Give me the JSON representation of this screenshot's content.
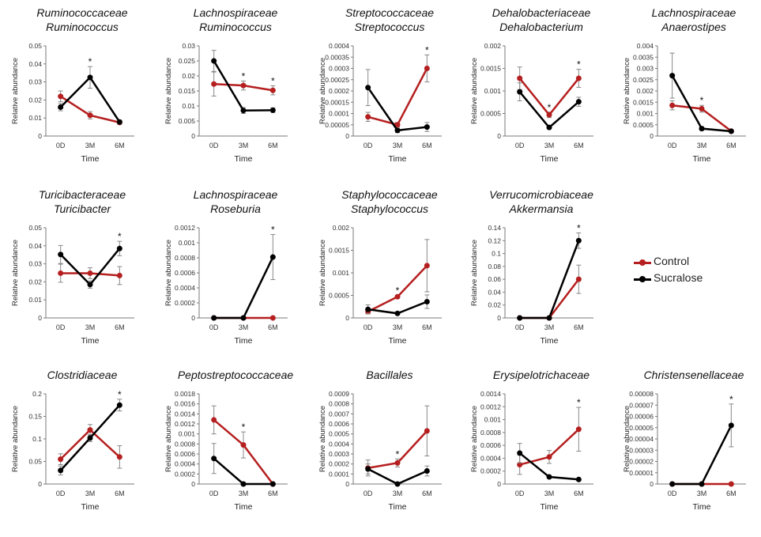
{
  "colors": {
    "control": "#b51f1f",
    "sucralose": "#000000"
  },
  "legend": {
    "control": "Control",
    "sucralose": "Sucralose"
  },
  "chart_data": [
    {
      "type": "line",
      "title": [
        "Ruminococcaceae",
        "Ruminococcus"
      ],
      "xlabel": "Time",
      "ylabel": "Relative abundance",
      "categories": [
        "0D",
        "3M",
        "6M"
      ],
      "ylim": [
        0,
        0.05
      ],
      "yticks": [
        "0",
        "0.01",
        "0.02",
        "0.03",
        "0.04",
        "0.05"
      ],
      "series": [
        {
          "name": "Control",
          "values": [
            0.022,
            0.0115,
            0.0075
          ],
          "err": [
            0.003,
            0.002,
            0.001
          ]
        },
        {
          "name": "Sucralose",
          "values": [
            0.016,
            0.0325,
            0.0078
          ],
          "err": [
            0.002,
            0.006,
            0.001
          ]
        }
      ],
      "sig": [
        1
      ]
    },
    {
      "type": "line",
      "title": [
        "Lachnospiraceae",
        "Ruminococcus"
      ],
      "xlabel": "Time",
      "ylabel": "Relative abundance",
      "categories": [
        "0D",
        "3M",
        "6M"
      ],
      "ylim": [
        0,
        0.03
      ],
      "yticks": [
        "0",
        "0.005",
        "0.01",
        "0.015",
        "0.02",
        "0.025",
        "0.03"
      ],
      "series": [
        {
          "name": "Control",
          "values": [
            0.0173,
            0.0168,
            0.0152
          ],
          "err": [
            0.004,
            0.0015,
            0.0015
          ]
        },
        {
          "name": "Sucralose",
          "values": [
            0.025,
            0.0085,
            0.0086
          ],
          "err": [
            0.0035,
            0.001,
            0.0008
          ]
        }
      ],
      "sig": [
        1,
        2
      ]
    },
    {
      "type": "line",
      "title": [
        "Streptococcaceae",
        "Streptococcus"
      ],
      "xlabel": "Time",
      "ylabel": "Relative abundance",
      "categories": [
        "0D",
        "3M",
        "6M"
      ],
      "ylim": [
        0,
        0.0004
      ],
      "yticks": [
        "0",
        "0.00005",
        "0.0001",
        "0.00015",
        "0.0002",
        "0.00025",
        "0.0003",
        "0.00035",
        "0.0004"
      ],
      "series": [
        {
          "name": "Control",
          "values": [
            8.5e-05,
            5e-05,
            0.0003
          ],
          "err": [
            2e-05,
            1e-05,
            6e-05
          ]
        },
        {
          "name": "Sucralose",
          "values": [
            0.000215,
            2.5e-05,
            4e-05
          ],
          "err": [
            8e-05,
            1e-05,
            2e-05
          ]
        }
      ],
      "sig": [
        2
      ]
    },
    {
      "type": "line",
      "title": [
        "Dehalobacteriaceae",
        "Dehalobacterium"
      ],
      "xlabel": "Time",
      "ylabel": "Relative abundance",
      "categories": [
        "0D",
        "3M",
        "6M"
      ],
      "ylim": [
        0,
        0.002
      ],
      "yticks": [
        "0",
        "0.0005",
        "0.001",
        "0.0015",
        "0.002"
      ],
      "series": [
        {
          "name": "Control",
          "values": [
            0.00128,
            0.00047,
            0.00128
          ],
          "err": [
            0.00025,
            6e-05,
            0.0002
          ]
        },
        {
          "name": "Sucralose",
          "values": [
            0.00098,
            0.00019,
            0.00076
          ],
          "err": [
            0.0002,
            3e-05,
            0.0001
          ]
        }
      ],
      "sig": [
        1,
        2
      ]
    },
    {
      "type": "line",
      "title": [
        "Lachnospiraceae",
        "Anaerostipes"
      ],
      "xlabel": "Time",
      "ylabel": "Relative abundance",
      "categories": [
        "0D",
        "3M",
        "6M"
      ],
      "ylim": [
        0,
        0.004
      ],
      "yticks": [
        "0",
        "0.0005",
        "0.001",
        "0.0015",
        "0.002",
        "0.0025",
        "0.003",
        "0.0035",
        "0.004"
      ],
      "series": [
        {
          "name": "Control",
          "values": [
            0.00136,
            0.00121,
            0.00022
          ],
          "err": [
            0.0002,
            0.00015,
            5e-05
          ]
        },
        {
          "name": "Sucralose",
          "values": [
            0.00268,
            0.00033,
            0.00021
          ],
          "err": [
            0.001,
            8e-05,
            5e-05
          ]
        }
      ],
      "sig": [
        1
      ]
    },
    {
      "type": "line",
      "title": [
        "Turicibacteraceae",
        "Turicibacter"
      ],
      "xlabel": "Time",
      "ylabel": "Relative abundance",
      "categories": [
        "0D",
        "3M",
        "6M"
      ],
      "ylim": [
        0,
        0.05
      ],
      "yticks": [
        "0",
        "0.01",
        "0.02",
        "0.03",
        "0.04",
        "0.05"
      ],
      "series": [
        {
          "name": "Control",
          "values": [
            0.0248,
            0.0248,
            0.0235
          ],
          "err": [
            0.005,
            0.003,
            0.005
          ]
        },
        {
          "name": "Sucralose",
          "values": [
            0.0352,
            0.0185,
            0.0385
          ],
          "err": [
            0.005,
            0.002,
            0.004
          ]
        }
      ],
      "sig": [
        2
      ]
    },
    {
      "type": "line",
      "title": [
        "Lachnospiraceae",
        "Roseburia"
      ],
      "xlabel": "Time",
      "ylabel": "Relative abundance",
      "categories": [
        "0D",
        "3M",
        "6M"
      ],
      "ylim": [
        0,
        0.0012
      ],
      "yticks": [
        "0",
        "0.0002",
        "0.0004",
        "0.0006",
        "0.0008",
        "0.001",
        "0.0012"
      ],
      "series": [
        {
          "name": "Control",
          "values": [
            0,
            0,
            0
          ],
          "err": [
            0,
            0,
            0
          ]
        },
        {
          "name": "Sucralose",
          "values": [
            0,
            0,
            0.00081
          ],
          "err": [
            0,
            0,
            0.0003
          ]
        }
      ],
      "sig": [
        2
      ]
    },
    {
      "type": "line",
      "title": [
        "Staphylococcaceae",
        "Staphylococcus"
      ],
      "xlabel": "Time",
      "ylabel": "Relative abundance",
      "categories": [
        "0D",
        "3M",
        "6M"
      ],
      "ylim": [
        0,
        0.002
      ],
      "yticks": [
        "0",
        "0.0005",
        "0.001",
        "0.0015",
        "0.002"
      ],
      "series": [
        {
          "name": "Control",
          "values": [
            0.00014,
            0.00047,
            0.00116
          ],
          "err": [
            5e-05,
            3e-05,
            0.00058
          ]
        },
        {
          "name": "Sucralose",
          "values": [
            0.00019,
            0.0001,
            0.00036
          ],
          "err": [
            0.0001,
            2e-05,
            0.00015
          ]
        }
      ],
      "sig": [
        1
      ]
    },
    {
      "type": "line",
      "title": [
        "Verrucomicrobiaceae",
        "Akkermansia"
      ],
      "xlabel": "Time",
      "ylabel": "Relative abundance",
      "categories": [
        "0D",
        "3M",
        "6M"
      ],
      "ylim": [
        0,
        0.14
      ],
      "yticks": [
        "0",
        "0.02",
        "0.04",
        "0.06",
        "0.08",
        "0.1",
        "0.12",
        "0.14"
      ],
      "series": [
        {
          "name": "Control",
          "values": [
            0,
            0,
            0.06
          ],
          "err": [
            0,
            0,
            0.022
          ]
        },
        {
          "name": "Sucralose",
          "values": [
            0,
            0,
            0.12
          ],
          "err": [
            0,
            0,
            0.012
          ]
        }
      ],
      "sig": [
        2
      ]
    },
    {
      "type": "line",
      "title": [
        "Clostridiaceae"
      ],
      "xlabel": "Time",
      "ylabel": "Relative abundance",
      "categories": [
        "0D",
        "3M",
        "6M"
      ],
      "ylim": [
        0,
        0.2
      ],
      "yticks": [
        "0",
        "0.05",
        "0.1",
        "0.15",
        "0.2"
      ],
      "series": [
        {
          "name": "Control",
          "values": [
            0.055,
            0.12,
            0.06
          ],
          "err": [
            0.012,
            0.012,
            0.025
          ]
        },
        {
          "name": "Sucralose",
          "values": [
            0.03,
            0.102,
            0.175
          ],
          "err": [
            0.01,
            0.008,
            0.013
          ]
        }
      ],
      "sig": [
        2
      ]
    },
    {
      "type": "line",
      "title": [
        "Peptostreptococcaceae"
      ],
      "xlabel": "Time",
      "ylabel": "Relative abundance",
      "categories": [
        "0D",
        "3M",
        "6M"
      ],
      "ylim": [
        0,
        0.0018
      ],
      "yticks": [
        "0",
        "0.0002",
        "0.0004",
        "0.0006",
        "0.0008",
        "0.001",
        "0.0012",
        "0.0014",
        "0.0016",
        "0.0018"
      ],
      "series": [
        {
          "name": "Control",
          "values": [
            0.00128,
            0.00078,
            0
          ],
          "err": [
            0.00028,
            0.00026,
            0
          ]
        },
        {
          "name": "Sucralose",
          "values": [
            0.00051,
            0,
            0
          ],
          "err": [
            0.0003,
            0,
            0
          ]
        }
      ],
      "sig": [
        1
      ]
    },
    {
      "type": "line",
      "title": [
        "Bacillales"
      ],
      "xlabel": "Time",
      "ylabel": "Relative abundance",
      "categories": [
        "0D",
        "3M",
        "6M"
      ],
      "ylim": [
        0,
        0.0009
      ],
      "yticks": [
        "0",
        "0.0001",
        "0.0002",
        "0.0003",
        "0.0004",
        "0.0005",
        "0.0006",
        "0.0007",
        "0.0008",
        "0.0009"
      ],
      "series": [
        {
          "name": "Control",
          "values": [
            0.00016,
            0.00021,
            0.00053
          ],
          "err": [
            8e-05,
            4e-05,
            0.00025
          ]
        },
        {
          "name": "Sucralose",
          "values": [
            0.00015,
            0,
            0.00013
          ],
          "err": [
            5e-05,
            0,
            5e-05
          ]
        }
      ],
      "sig": [
        1
      ]
    },
    {
      "type": "line",
      "title": [
        "Erysipelotrichaceae"
      ],
      "xlabel": "Time",
      "ylabel": "Relative abundance",
      "categories": [
        "0D",
        "3M",
        "6M"
      ],
      "ylim": [
        0,
        0.0014
      ],
      "yticks": [
        "0",
        "0.0002",
        "0.0004",
        "0.0006",
        "0.0008",
        "0.001",
        "0.0012",
        "0.0014"
      ],
      "series": [
        {
          "name": "Control",
          "values": [
            0.0003,
            0.00042,
            0.00085
          ],
          "err": [
            0.00015,
            0.0001,
            0.00034
          ]
        },
        {
          "name": "Sucralose",
          "values": [
            0.00048,
            0.00011,
            7e-05
          ],
          "err": [
            0.00015,
            2e-05,
            2e-05
          ]
        }
      ],
      "sig": [
        2
      ]
    },
    {
      "type": "line",
      "title": [
        "Christensenellaceae"
      ],
      "xlabel": "Time",
      "ylabel": "Relative abundance",
      "categories": [
        "0D",
        "3M",
        "6M"
      ],
      "ylim": [
        0,
        8e-05
      ],
      "yticks": [
        "0",
        "0.00001",
        "0.00002",
        "0.00003",
        "0.00004",
        "0.00005",
        "0.00006",
        "0.00007",
        "0.00008"
      ],
      "series": [
        {
          "name": "Control",
          "values": [
            0,
            0,
            0
          ],
          "err": [
            0,
            0,
            0
          ]
        },
        {
          "name": "Sucralose",
          "values": [
            0,
            0,
            5.2e-05
          ],
          "err": [
            0,
            0,
            1.9e-05
          ]
        }
      ],
      "sig": [
        2
      ]
    }
  ]
}
